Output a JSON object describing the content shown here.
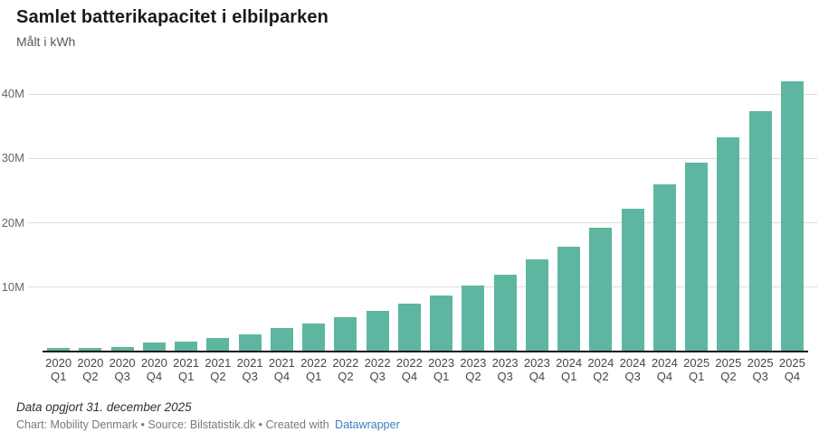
{
  "chart_data": {
    "type": "bar",
    "title": "Samlet batterikapacitet i elbilparken",
    "subtitle": "Målt i kWh",
    "unit": "kWh",
    "categories": [
      "2020 Q1",
      "2020 Q2",
      "2020 Q3",
      "2020 Q4",
      "2021 Q1",
      "2021 Q2",
      "2021 Q3",
      "2021 Q4",
      "2022 Q1",
      "2022 Q2",
      "2022 Q3",
      "2022 Q4",
      "2023 Q1",
      "2023 Q2",
      "2023 Q3",
      "2023 Q4",
      "2024 Q1",
      "2024 Q2",
      "2024 Q3",
      "2024 Q4",
      "2025 Q1",
      "2025 Q2",
      "2025 Q3",
      "2025 Q4"
    ],
    "values_million_kwh": [
      0.5,
      0.5,
      0.7,
      1.4,
      1.6,
      2.1,
      2.7,
      3.7,
      4.4,
      5.3,
      6.3,
      7.5,
      8.7,
      10.3,
      11.9,
      14.3,
      16.3,
      19.2,
      22.2,
      26.0,
      29.3,
      33.3,
      37.3,
      41.9
    ],
    "y_ticks": [
      {
        "value": 10,
        "label": "10M"
      },
      {
        "value": 20,
        "label": "20M"
      },
      {
        "value": 30,
        "label": "30M"
      },
      {
        "value": 40,
        "label": "40M"
      }
    ],
    "ylim_million": [
      0,
      42
    ],
    "xlabel": "",
    "ylabel": "kWh",
    "grid": true,
    "legend": "none",
    "bar_color": "#5eb6a0",
    "grid_color": "#dcdcdc",
    "axis_color": "#151515"
  },
  "footer": {
    "note": "Data opgjort 31. december 2025",
    "credit_text": "Chart: Mobility Denmark • Source: Bilstatistik.dk • Created with",
    "credit_link": "Datawrapper"
  }
}
